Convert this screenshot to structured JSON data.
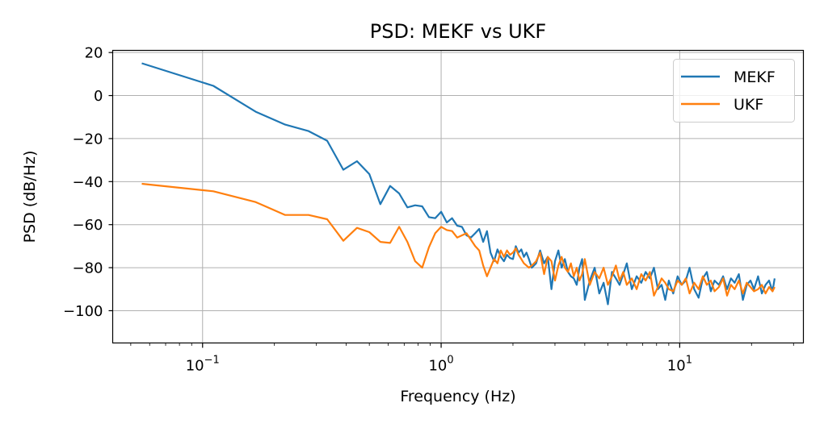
{
  "chart_data": {
    "type": "line",
    "title": "PSD: MEKF vs UKF",
    "xlabel": "Frequency (Hz)",
    "ylabel": "PSD (dB/Hz)",
    "x_scale": "log",
    "xlim": [
      0.042,
      33
    ],
    "ylim": [
      -115,
      21
    ],
    "grid": true,
    "legend_position": "top-right",
    "xticks": [
      {
        "value": 0.1,
        "base": "10",
        "exp": "−1"
      },
      {
        "value": 1,
        "base": "10",
        "exp": "0"
      },
      {
        "value": 10,
        "base": "10",
        "exp": "1"
      }
    ],
    "yticks": [
      {
        "value": 20,
        "label": "20"
      },
      {
        "value": 0,
        "label": "0"
      },
      {
        "value": -20,
        "label": "−20"
      },
      {
        "value": -40,
        "label": "−40"
      },
      {
        "value": -60,
        "label": "−60"
      },
      {
        "value": -80,
        "label": "−80"
      },
      {
        "value": -100,
        "label": "−100"
      }
    ],
    "series": [
      {
        "name": "MEKF",
        "color": "#1f77b4",
        "x": [
          0.0556,
          0.111,
          0.167,
          0.222,
          0.278,
          0.333,
          0.389,
          0.444,
          0.5,
          0.556,
          0.611,
          0.667,
          0.722,
          0.778,
          0.833,
          0.889,
          0.944,
          1.0,
          1.056,
          1.111,
          1.167,
          1.222,
          1.278,
          1.333,
          1.389,
          1.444,
          1.5,
          1.556,
          1.611,
          1.667,
          1.722,
          1.778,
          1.833,
          1.889,
          1.944,
          2.0,
          2.056,
          2.111,
          2.167,
          2.222,
          2.278,
          2.333,
          2.4,
          2.5,
          2.6,
          2.7,
          2.8,
          2.9,
          3.0,
          3.1,
          3.2,
          3.3,
          3.4,
          3.5,
          3.6,
          3.7,
          3.8,
          3.9,
          4.0,
          4.2,
          4.4,
          4.6,
          4.8,
          5.0,
          5.2,
          5.4,
          5.6,
          5.8,
          6.0,
          6.3,
          6.6,
          6.9,
          7.2,
          7.5,
          7.8,
          8.1,
          8.4,
          8.7,
          9.0,
          9.4,
          9.8,
          10.2,
          10.6,
          11.0,
          11.5,
          12.0,
          12.5,
          13.0,
          13.5,
          14.0,
          14.6,
          15.2,
          15.8,
          16.4,
          17.0,
          17.7,
          18.4,
          19.1,
          19.8,
          20.5,
          21.3,
          22.1,
          22.9,
          23.7,
          24.5,
          25.0
        ],
        "y": [
          15,
          4.5,
          -7.5,
          -13.5,
          -16.5,
          -21,
          -34.5,
          -30.5,
          -36.5,
          -50.5,
          -42,
          -45.5,
          -52,
          -51,
          -51.5,
          -56.5,
          -57,
          -54,
          -59,
          -57,
          -60.5,
          -61,
          -65,
          -66,
          -64,
          -62,
          -68,
          -63,
          -73,
          -77,
          -71.5,
          -75,
          -77,
          -74,
          -75.5,
          -76,
          -70,
          -73,
          -71.5,
          -75,
          -73,
          -76,
          -80,
          -78,
          -72,
          -78,
          -75,
          -90,
          -77,
          -72,
          -80,
          -76,
          -82,
          -84,
          -85,
          -88,
          -80,
          -76,
          -95,
          -86,
          -80,
          -92,
          -87,
          -97,
          -82,
          -85,
          -88,
          -83,
          -78,
          -90,
          -84,
          -87,
          -82,
          -85,
          -80,
          -90,
          -88,
          -95,
          -86,
          -92,
          -84,
          -88,
          -86,
          -80,
          -90,
          -94,
          -85,
          -82,
          -91,
          -86,
          -88,
          -84,
          -90,
          -85,
          -87,
          -83,
          -95,
          -88,
          -86,
          -90,
          -84,
          -92,
          -88,
          -86,
          -91,
          -85
        ]
      },
      {
        "name": "UKF",
        "color": "#ff7f0e",
        "x": [
          0.0556,
          0.111,
          0.167,
          0.222,
          0.278,
          0.333,
          0.389,
          0.444,
          0.5,
          0.556,
          0.611,
          0.667,
          0.722,
          0.778,
          0.833,
          0.889,
          0.944,
          1.0,
          1.056,
          1.111,
          1.167,
          1.222,
          1.278,
          1.333,
          1.389,
          1.444,
          1.5,
          1.556,
          1.611,
          1.667,
          1.722,
          1.778,
          1.833,
          1.889,
          1.944,
          2.0,
          2.056,
          2.111,
          2.167,
          2.222,
          2.278,
          2.333,
          2.4,
          2.5,
          2.6,
          2.7,
          2.8,
          2.9,
          3.0,
          3.1,
          3.2,
          3.3,
          3.4,
          3.5,
          3.6,
          3.7,
          3.8,
          3.9,
          4.0,
          4.2,
          4.4,
          4.6,
          4.8,
          5.0,
          5.2,
          5.4,
          5.6,
          5.8,
          6.0,
          6.3,
          6.6,
          6.9,
          7.2,
          7.5,
          7.8,
          8.1,
          8.4,
          8.7,
          9.0,
          9.4,
          9.8,
          10.2,
          10.6,
          11.0,
          11.5,
          12.0,
          12.5,
          13.0,
          13.5,
          14.0,
          14.6,
          15.2,
          15.8,
          16.4,
          17.0,
          17.7,
          18.4,
          19.1,
          19.8,
          20.5,
          21.3,
          22.1,
          22.9,
          23.7,
          24.5,
          25.0
        ],
        "y": [
          -41,
          -44.5,
          -49.5,
          -55.5,
          -55.5,
          -57.5,
          -67.5,
          -61.5,
          -63.5,
          -68,
          -68.5,
          -61,
          -68,
          -77,
          -80,
          -70.5,
          -64,
          -61,
          -62.5,
          -63,
          -66,
          -65,
          -64,
          -67,
          -70,
          -72,
          -79,
          -84,
          -80,
          -76,
          -78,
          -72,
          -75,
          -72,
          -74,
          -73,
          -71,
          -74,
          -76,
          -78,
          -79,
          -80,
          -79,
          -77,
          -73,
          -83,
          -75,
          -77,
          -86,
          -79,
          -75,
          -80,
          -82,
          -78,
          -84,
          -80,
          -86,
          -83,
          -76,
          -88,
          -82,
          -85,
          -80,
          -88,
          -84,
          -79,
          -86,
          -82,
          -88,
          -85,
          -90,
          -83,
          -86,
          -82,
          -93,
          -89,
          -85,
          -87,
          -90,
          -91,
          -86,
          -88,
          -85,
          -92,
          -87,
          -90,
          -84,
          -88,
          -86,
          -91,
          -89,
          -85,
          -93,
          -88,
          -90,
          -86,
          -92,
          -87,
          -89,
          -91,
          -90,
          -88,
          -92,
          -89,
          -91,
          -89
        ]
      }
    ]
  }
}
